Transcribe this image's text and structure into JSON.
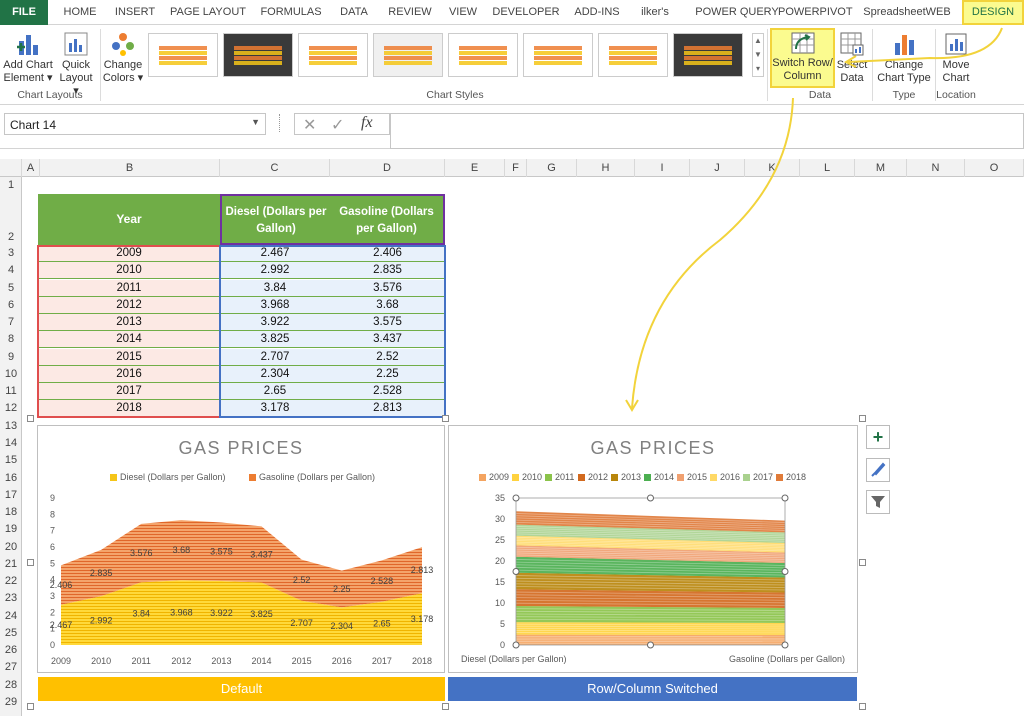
{
  "ribbon_tabs": [
    "FILE",
    "HOME",
    "INSERT",
    "PAGE LAYOUT",
    "FORMULAS",
    "DATA",
    "REVIEW",
    "VIEW",
    "DEVELOPER",
    "ADD-INS",
    "ilker's",
    "POWER QUERY",
    "POWERPIVOT",
    "SpreadsheetWEB",
    "DESIGN"
  ],
  "ribbon": {
    "add_chart_element": [
      "Add Chart",
      "Element ▾"
    ],
    "quick_layout": [
      "Quick",
      "Layout ▾"
    ],
    "chart_layouts_label": "Chart Layouts",
    "change_colors": [
      "Change",
      "Colors ▾"
    ],
    "chart_styles_label": "Chart Styles",
    "switch_row_column": [
      "Switch Row/",
      "Column"
    ],
    "select_data": [
      "Select",
      "Data"
    ],
    "data_label": "Data",
    "change_chart_type": [
      "Change",
      "Chart Type"
    ],
    "type_label": "Type",
    "move_chart": [
      "Move",
      "Chart"
    ],
    "location_label": "Location"
  },
  "name_box": "Chart 14",
  "formula_icons": {
    "cancel": "✕",
    "enter": "✓",
    "fx": "fx"
  },
  "columns": [
    "A",
    "B",
    "C",
    "D",
    "E",
    "F",
    "G",
    "H",
    "I",
    "J",
    "K",
    "L",
    "M",
    "N",
    "O"
  ],
  "rows": [
    "1",
    "2",
    "3",
    "4",
    "5",
    "6",
    "7",
    "8",
    "9",
    "10",
    "11",
    "12",
    "13",
    "14",
    "15",
    "16",
    "17",
    "18",
    "19",
    "20",
    "21",
    "22",
    "23",
    "24",
    "25",
    "26",
    "27",
    "28",
    "29"
  ],
  "table": {
    "headers": [
      "Year",
      "Diesel (Dollars per Gallon)",
      "Gasoline (Dollars per Gallon)"
    ],
    "rows": [
      [
        "2009",
        "2.467",
        "2.406"
      ],
      [
        "2010",
        "2.992",
        "2.835"
      ],
      [
        "2011",
        "3.84",
        "3.576"
      ],
      [
        "2012",
        "3.968",
        "3.68"
      ],
      [
        "2013",
        "3.922",
        "3.575"
      ],
      [
        "2014",
        "3.825",
        "3.437"
      ],
      [
        "2015",
        "2.707",
        "2.52"
      ],
      [
        "2016",
        "2.304",
        "2.25"
      ],
      [
        "2017",
        "2.65",
        "2.528"
      ],
      [
        "2018",
        "3.178",
        "2.813"
      ]
    ]
  },
  "colors": {
    "diesel": "#f5c518",
    "gasoline": "#ed7d31",
    "header_green": "#70ad47",
    "default_banner": "#ffc000",
    "switched_banner": "#4472c4",
    "callout": "#f2d33b"
  },
  "banners": {
    "left": "Default",
    "right": "Row/Column Switched"
  },
  "chart_data": [
    {
      "type": "area",
      "title": "GAS PRICES",
      "categories": [
        "2009",
        "2010",
        "2011",
        "2012",
        "2013",
        "2014",
        "2015",
        "2016",
        "2017",
        "2018"
      ],
      "series": [
        {
          "name": "Diesel (Dollars per Gallon)",
          "values": [
            2.467,
            2.992,
            3.84,
            3.968,
            3.922,
            3.825,
            2.707,
            2.304,
            2.65,
            3.178
          ]
        },
        {
          "name": "Gasoline (Dollars per Gallon)",
          "values": [
            2.406,
            2.835,
            3.576,
            3.68,
            3.575,
            3.437,
            2.52,
            2.25,
            2.528,
            2.813
          ]
        }
      ],
      "stacked": true,
      "ylim": [
        0,
        9
      ],
      "yticks": [
        "0",
        "1",
        "2",
        "3",
        "4",
        "5",
        "6",
        "7",
        "8",
        "9"
      ],
      "legend": "top",
      "grid": false
    },
    {
      "type": "area",
      "title": "GAS PRICES",
      "categories": [
        "Diesel (Dollars per Gallon)",
        "Gasoline (Dollars per Gallon)"
      ],
      "series": [
        {
          "name": "2009",
          "values": [
            2.467,
            2.406
          ]
        },
        {
          "name": "2010",
          "values": [
            2.992,
            2.835
          ]
        },
        {
          "name": "2011",
          "values": [
            3.84,
            3.576
          ]
        },
        {
          "name": "2012",
          "values": [
            3.968,
            3.68
          ]
        },
        {
          "name": "2013",
          "values": [
            3.922,
            3.575
          ]
        },
        {
          "name": "2014",
          "values": [
            3.825,
            3.437
          ]
        },
        {
          "name": "2015",
          "values": [
            2.707,
            2.52
          ]
        },
        {
          "name": "2016",
          "values": [
            2.304,
            2.25
          ]
        },
        {
          "name": "2017",
          "values": [
            2.65,
            2.528
          ]
        },
        {
          "name": "2018",
          "values": [
            3.178,
            2.813
          ]
        }
      ],
      "series_colors": [
        "#f4a460",
        "#ffd23f",
        "#8bc34a",
        "#d2691e",
        "#b8860b",
        "#4caf50",
        "#f0a070",
        "#ffd966",
        "#a9d18e",
        "#e07b39"
      ],
      "stacked": true,
      "ylim": [
        0,
        35
      ],
      "yticks": [
        "0",
        "5",
        "10",
        "15",
        "20",
        "25",
        "30",
        "35"
      ],
      "legend": "top",
      "grid": false
    }
  ]
}
